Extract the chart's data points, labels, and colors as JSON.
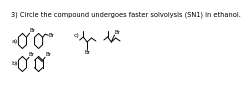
{
  "title": "3) Circle the compound undergoes faster solvolysis (SN1) in ethanol.",
  "title_fontsize": 4.8,
  "bg_color": "#ffffff",
  "text_color": "#000000",
  "label_a": "a)",
  "label_b": "b)",
  "label_c": "c)",
  "lw": 0.7,
  "br_fs": 4.0,
  "label_fs": 4.5
}
